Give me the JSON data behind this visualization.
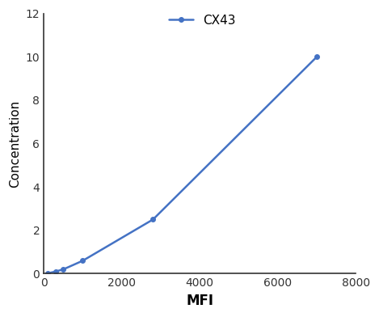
{
  "x": [
    100,
    300,
    500,
    1000,
    2800,
    7000
  ],
  "y": [
    0.02,
    0.1,
    0.2,
    0.6,
    2.5,
    10.0
  ],
  "line_color": "#4472C4",
  "marker": "o",
  "marker_size": 4,
  "label": "CX43",
  "xlabel": "MFI",
  "ylabel": "Concentration",
  "xlim": [
    0,
    8000
  ],
  "ylim": [
    0,
    12
  ],
  "xticks": [
    0,
    2000,
    4000,
    6000,
    8000
  ],
  "yticks": [
    0,
    2,
    4,
    6,
    8,
    10,
    12
  ],
  "xlabel_fontsize": 12,
  "ylabel_fontsize": 11,
  "tick_fontsize": 10,
  "legend_fontsize": 11,
  "background_color": "#ffffff",
  "spine_color": "#333333"
}
